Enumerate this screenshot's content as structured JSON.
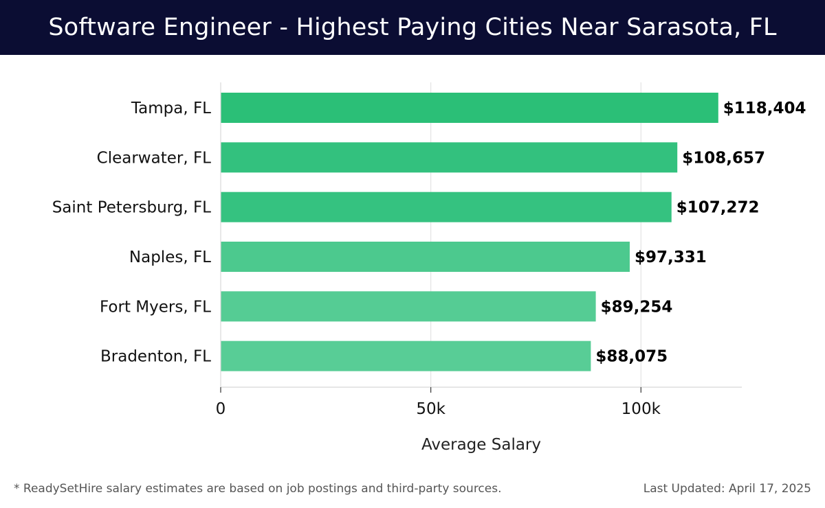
{
  "header": {
    "title": "Software Engineer - Highest Paying Cities Near Sarasota, FL"
  },
  "chart_data": {
    "type": "bar",
    "orientation": "horizontal",
    "title": "Software Engineer - Highest Paying Cities Near Sarasota, FL",
    "xlabel": "Average Salary",
    "ylabel": "",
    "xlim": [
      0,
      124000
    ],
    "x_ticks": [
      0,
      50000,
      100000
    ],
    "x_tick_labels": [
      "0",
      "50k",
      "100k"
    ],
    "grid": true,
    "categories": [
      "Tampa, FL",
      "Clearwater, FL",
      "Saint Petersburg, FL",
      "Naples, FL",
      "Fort Myers, FL",
      "Bradenton, FL"
    ],
    "values": [
      118404,
      108657,
      107272,
      97331,
      89254,
      88075
    ],
    "value_labels": [
      "$118,404",
      "$108,657",
      "$107,272",
      "$97,331",
      "$89,254",
      "$88,075"
    ],
    "bar_colors": [
      "#2bbf77",
      "#33c17e",
      "#35c280",
      "#4cc98e",
      "#55cc94",
      "#58cd96"
    ]
  },
  "footer": {
    "note": "* ReadySetHire salary estimates are based on job postings and third-party sources.",
    "updated": "Last Updated: April 17, 2025"
  }
}
